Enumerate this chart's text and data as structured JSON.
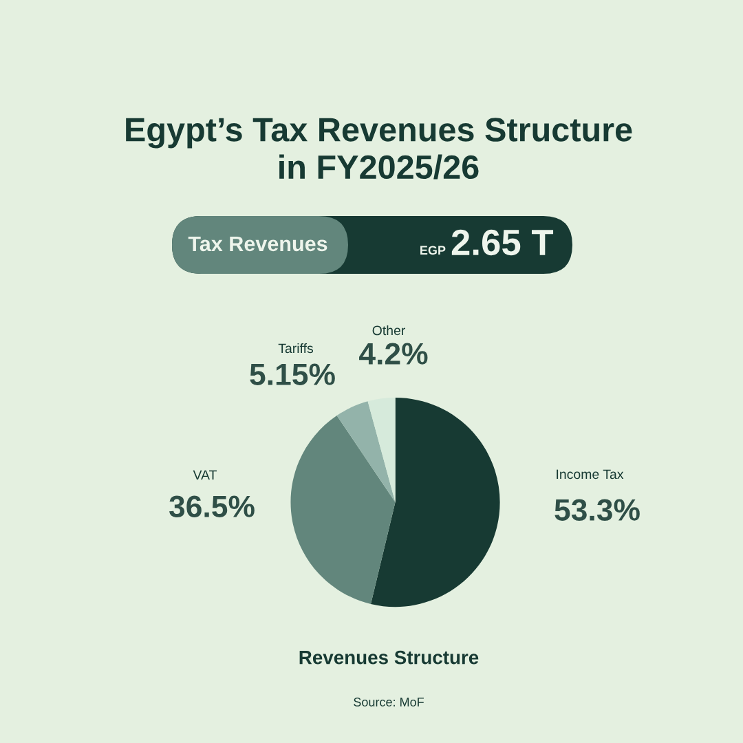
{
  "chart_data": {
    "type": "pie",
    "title": "Egypt’s Tax Revenues Structure\nin FY2025/26",
    "categories": [
      "Income Tax",
      "VAT",
      "Tariffs",
      "Other"
    ],
    "values": [
      53.3,
      36.5,
      5.15,
      4.2
    ],
    "colors": [
      "#173a33",
      "#62867c",
      "#93b3aa",
      "#d6eadb"
    ],
    "value_labels": [
      "53.3%",
      "36.5%",
      "5.15%",
      "4.2%"
    ],
    "xlabel": "Revenues Structure",
    "annotations": [
      "Tax Revenues",
      "EGP",
      "2.65 T",
      "Source: MoF"
    ],
    "legend": false
  }
}
